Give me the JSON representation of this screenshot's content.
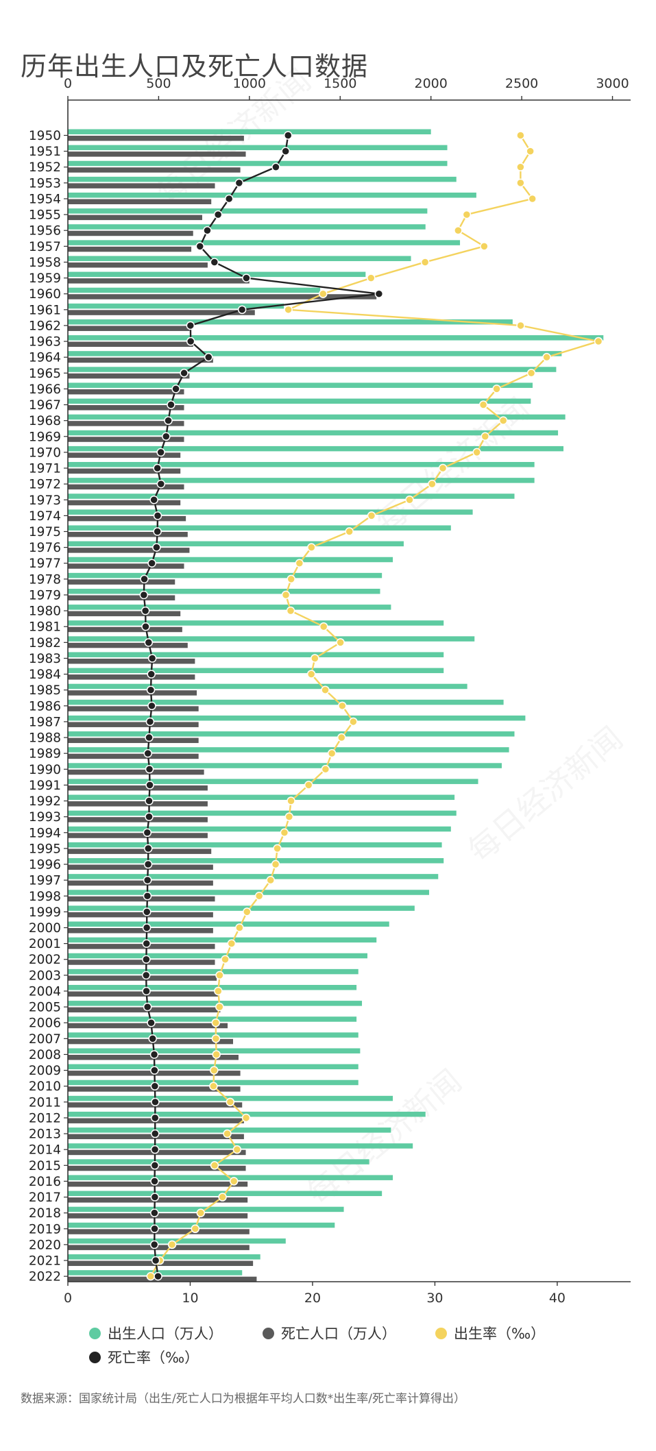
{
  "title": "历年出生人口及死亡人口数据",
  "source": "数据来源：国家统计局（出生/死亡人口为根据年平均人口数*出生率/死亡率计算得出）",
  "legend": [
    {
      "label": "出生人口（万人）",
      "color": "#5ecba1"
    },
    {
      "label": "死亡人口（万人）",
      "color": "#5a5a5a"
    },
    {
      "label": "出生率（‰）",
      "color": "#f4d35e"
    },
    {
      "label": "死亡率（‰）",
      "color": "#222222"
    }
  ],
  "watermark": "每日经济新闻",
  "chart_data": {
    "type": "bar",
    "orientation": "horizontal",
    "top_axis": {
      "min": 0,
      "max": 3100,
      "ticks": [
        0,
        500,
        1000,
        1500,
        2000,
        2500,
        3000
      ],
      "series": [
        "出生人口（万人）",
        "死亡人口（万人）"
      ]
    },
    "bottom_axis": {
      "min": 0,
      "max": 46,
      "ticks": [
        0,
        10,
        20,
        30,
        40
      ],
      "series": [
        "出生率（‰）",
        "死亡率（‰）"
      ]
    },
    "categories": [
      "1950",
      "1951",
      "1952",
      "1953",
      "1954",
      "1955",
      "1956",
      "1957",
      "1958",
      "1959",
      "1960",
      "1961",
      "1962",
      "1963",
      "1964",
      "1965",
      "1966",
      "1967",
      "1968",
      "1969",
      "1970",
      "1971",
      "1972",
      "1973",
      "1974",
      "1975",
      "1976",
      "1977",
      "1978",
      "1979",
      "1980",
      "1981",
      "1982",
      "1983",
      "1984",
      "1985",
      "1986",
      "1987",
      "1988",
      "1989",
      "1990",
      "1991",
      "1992",
      "1993",
      "1994",
      "1995",
      "1996",
      "1997",
      "1998",
      "1999",
      "2000",
      "2001",
      "2002",
      "2003",
      "2004",
      "2005",
      "2006",
      "2007",
      "2008",
      "2009",
      "2010",
      "2011",
      "2012",
      "2013",
      "2014",
      "2015",
      "2016",
      "2017",
      "2018",
      "2019",
      "2020",
      "2021",
      "2022"
    ],
    "series": [
      {
        "name": "出生人口（万人）",
        "color": "#5ecba1",
        "values": [
          2000,
          2090,
          2090,
          2140,
          2250,
          1980,
          1970,
          2160,
          1890,
          1640,
          1390,
          1190,
          2450,
          2950,
          2720,
          2690,
          2560,
          2550,
          2740,
          2700,
          2730,
          2570,
          2570,
          2460,
          2230,
          2110,
          1850,
          1790,
          1730,
          1720,
          1780,
          2070,
          2240,
          2070,
          2070,
          2200,
          2400,
          2520,
          2460,
          2430,
          2390,
          2260,
          2130,
          2140,
          2110,
          2060,
          2070,
          2040,
          1990,
          1910,
          1770,
          1700,
          1650,
          1600,
          1590,
          1620,
          1590,
          1600,
          1610,
          1600,
          1600,
          1790,
          1970,
          1780,
          1900,
          1660,
          1790,
          1730,
          1520,
          1470,
          1200,
          1060,
          960
        ]
      },
      {
        "name": "死亡人口（万人）",
        "color": "#5a5a5a",
        "values": [
          970,
          980,
          950,
          810,
          790,
          740,
          690,
          680,
          770,
          1000,
          1700,
          1030,
          670,
          690,
          800,
          670,
          640,
          640,
          640,
          640,
          620,
          620,
          640,
          620,
          650,
          660,
          670,
          640,
          590,
          590,
          620,
          630,
          660,
          700,
          700,
          710,
          720,
          720,
          720,
          720,
          750,
          770,
          770,
          770,
          770,
          790,
          800,
          800,
          810,
          800,
          800,
          810,
          810,
          820,
          830,
          840,
          880,
          910,
          940,
          950,
          950,
          960,
          970,
          970,
          980,
          980,
          990,
          990,
          990,
          1000,
          1000,
          1020,
          1040
        ]
      },
      {
        "name": "出生率（‰）",
        "color": "#f4d35e",
        "values": [
          37.0,
          37.8,
          37.0,
          37.0,
          37.97,
          32.6,
          31.9,
          34.03,
          29.2,
          24.78,
          20.86,
          18.02,
          37.01,
          43.37,
          39.14,
          37.88,
          35.05,
          33.96,
          35.59,
          34.11,
          33.43,
          30.65,
          29.77,
          27.93,
          24.82,
          23.01,
          19.91,
          18.93,
          18.25,
          17.82,
          18.21,
          20.91,
          22.28,
          20.19,
          19.9,
          21.04,
          22.43,
          23.33,
          22.37,
          21.58,
          21.06,
          19.68,
          18.24,
          18.09,
          17.7,
          17.12,
          16.98,
          16.57,
          15.64,
          14.64,
          14.03,
          13.38,
          12.86,
          12.41,
          12.29,
          12.4,
          12.09,
          12.1,
          12.14,
          11.95,
          11.9,
          13.27,
          14.57,
          13.03,
          13.83,
          11.99,
          13.57,
          12.64,
          10.86,
          10.41,
          8.52,
          7.52,
          6.77
        ]
      },
      {
        "name": "死亡率（‰）",
        "color": "#222222",
        "values": [
          18.0,
          17.8,
          17.0,
          14.0,
          13.18,
          12.28,
          11.4,
          10.8,
          11.98,
          14.59,
          25.43,
          14.24,
          10.02,
          10.04,
          11.5,
          9.5,
          8.83,
          8.43,
          8.21,
          8.03,
          7.6,
          7.32,
          7.61,
          7.04,
          7.34,
          7.32,
          7.25,
          6.87,
          6.25,
          6.21,
          6.34,
          6.36,
          6.6,
          6.9,
          6.82,
          6.78,
          6.86,
          6.72,
          6.64,
          6.54,
          6.67,
          6.7,
          6.64,
          6.64,
          6.49,
          6.57,
          6.56,
          6.51,
          6.5,
          6.46,
          6.45,
          6.43,
          6.41,
          6.4,
          6.42,
          6.51,
          6.81,
          6.93,
          7.06,
          7.08,
          7.11,
          7.14,
          7.13,
          7.13,
          7.12,
          7.11,
          7.09,
          7.11,
          7.08,
          7.09,
          7.07,
          7.18,
          7.37
        ]
      }
    ],
    "grid": false,
    "legend_position": "bottom"
  }
}
